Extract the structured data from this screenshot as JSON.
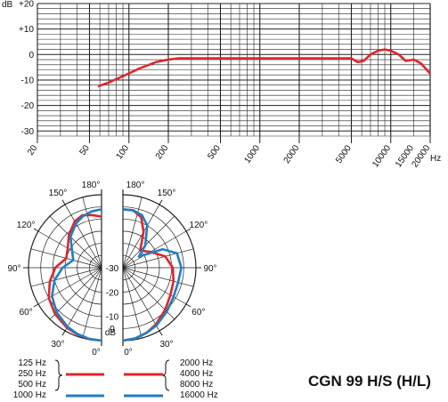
{
  "product": {
    "title": "CGN  99 H/S (H/L)"
  },
  "colors": {
    "red": "#e2242b",
    "blue": "#1f7fc4",
    "grid": "#222222"
  },
  "chart_data": [
    {
      "type": "line",
      "name": "frequency-response",
      "y_unit": "dB",
      "x_unit": "Hz",
      "xscale": "log",
      "xlim": [
        20,
        20000
      ],
      "ylim": [
        -32,
        20
      ],
      "y_ticks": [
        {
          "value": 20,
          "label": "+20"
        },
        {
          "value": 10,
          "label": "+10"
        },
        {
          "value": 0,
          "label": "0"
        },
        {
          "value": -10,
          "label": "-10"
        },
        {
          "value": -20,
          "label": "-20"
        },
        {
          "value": -30,
          "label": "-30"
        }
      ],
      "x_tick_labels": [
        {
          "value": 20,
          "label": "20"
        },
        {
          "value": 50,
          "label": "50"
        },
        {
          "value": 100,
          "label": "100"
        },
        {
          "value": 200,
          "label": "200"
        },
        {
          "value": 500,
          "label": "500"
        },
        {
          "value": 1000,
          "label": "1000"
        },
        {
          "value": 2000,
          "label": "2000"
        },
        {
          "value": 5000,
          "label": "5000"
        },
        {
          "value": 10000,
          "label": "10000"
        },
        {
          "value": 15000,
          "label": "15000"
        },
        {
          "value": 20000,
          "label": "20000"
        }
      ],
      "grid": true,
      "series": [
        {
          "color": "#e2242b",
          "x": [
            58,
            70,
            90,
            120,
            160,
            200,
            240,
            500,
            1000,
            2000,
            5000,
            5600,
            6200,
            7000,
            8000,
            9000,
            10000,
            11500,
            13000,
            15000,
            17000,
            20000
          ],
          "y": [
            -12.5,
            -11,
            -8.5,
            -5.5,
            -3,
            -2,
            -1.5,
            -1.5,
            -1.5,
            -1.5,
            -1.5,
            -3,
            -2.5,
            0,
            1.5,
            2,
            1.5,
            0,
            -2.5,
            -2,
            -3.5,
            -7.5
          ]
        }
      ]
    },
    {
      "type": "polar",
      "name": "polar-pattern",
      "r_unit": "dB",
      "rlim": [
        -30,
        0
      ],
      "r_tick_labels": [
        {
          "value": -30,
          "label": "-30"
        },
        {
          "value": -20,
          "label": "-20"
        },
        {
          "value": -10,
          "label": "-10"
        },
        {
          "value": 0,
          "label": "0"
        }
      ],
      "angle_labels": [
        {
          "angle": 0,
          "label": "0°"
        },
        {
          "angle": 30,
          "label": "30°"
        },
        {
          "angle": 60,
          "label": "60°"
        },
        {
          "angle": 90,
          "label": "90°"
        },
        {
          "angle": 120,
          "label": "120°"
        },
        {
          "angle": 150,
          "label": "150°"
        },
        {
          "angle": 180,
          "label": "180°"
        }
      ],
      "left_half_series": [
        {
          "group": "low",
          "color": "#e2242b",
          "angles": [
            0,
            10,
            20,
            30,
            45,
            60,
            75,
            90,
            105,
            120,
            135,
            150,
            160,
            170,
            180
          ],
          "values": [
            0,
            -0.2,
            -0.8,
            -1.5,
            -3,
            -5,
            -8,
            -11,
            -15,
            -14,
            -11,
            -8,
            -7,
            -8,
            -9
          ]
        },
        {
          "group": "mid",
          "color": "#1f7fc4",
          "angles": [
            0,
            10,
            20,
            30,
            45,
            60,
            75,
            90,
            105,
            120,
            135,
            150,
            160,
            170,
            180
          ],
          "values": [
            0,
            -0.3,
            -1,
            -2,
            -4,
            -6.5,
            -10,
            -14,
            -18,
            -16,
            -12,
            -9,
            -7.5,
            -6.5,
            -6
          ]
        }
      ],
      "right_half_series": [
        {
          "group": "high",
          "color": "#e2242b",
          "angles": [
            0,
            10,
            20,
            30,
            45,
            60,
            75,
            90,
            105,
            120,
            135,
            150,
            160,
            170,
            180
          ],
          "values": [
            0,
            -0.5,
            -1.5,
            -3,
            -5.5,
            -7.5,
            -8.5,
            -9.5,
            -12,
            -17,
            -20,
            -13,
            -8,
            -6,
            -6
          ]
        },
        {
          "group": "top",
          "color": "#1f7fc4",
          "angles": [
            0,
            10,
            20,
            30,
            45,
            60,
            75,
            90,
            105,
            115,
            125,
            135,
            150,
            160,
            170,
            180
          ],
          "values": [
            0,
            -0.5,
            -1.5,
            -2.5,
            -4.5,
            -6,
            -6.5,
            -6,
            -7,
            -12,
            -22,
            -17,
            -10,
            -7,
            -6,
            -6
          ]
        }
      ],
      "legend_left": {
        "labels": [
          "125 Hz",
          "250 Hz",
          "500 Hz",
          "1000 Hz"
        ],
        "swatches": [
          {
            "color": "#e2242b",
            "row": 1
          },
          {
            "color": "#1f7fc4",
            "row": 3
          }
        ]
      },
      "legend_right": {
        "labels": [
          "2000 Hz",
          "4000 Hz",
          "8000 Hz",
          "16000 Hz"
        ],
        "swatches": [
          {
            "color": "#e2242b",
            "row": 1
          },
          {
            "color": "#1f7fc4",
            "row": 3
          }
        ]
      }
    }
  ]
}
